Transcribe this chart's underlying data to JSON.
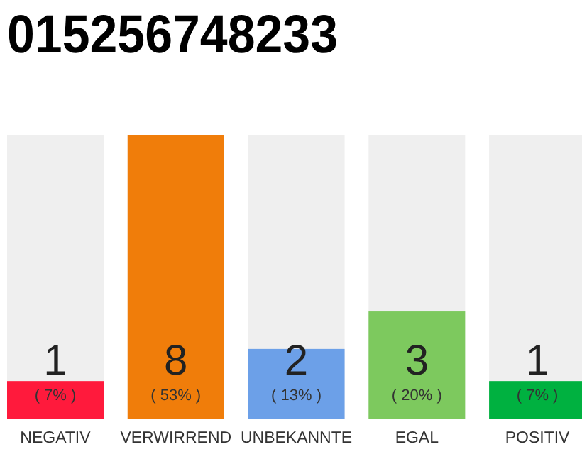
{
  "chart_data": {
    "type": "bar",
    "title": "015256748233",
    "categories": [
      "NEGATIV",
      "VERWIRREND",
      "UNBEKANNTE",
      "EGAL",
      "POSITIV"
    ],
    "values": [
      7,
      53,
      13,
      20,
      7
    ],
    "colors": [
      "#ff1a3c",
      "#f07d0a",
      "#6ca0e8",
      "#7dc95e",
      "#00b140"
    ],
    "value_labels": [
      "1\n( 7% )",
      "8\n( 53% )",
      "2\n( 13% )",
      "3\n( 20% )",
      "1\n( 7% )"
    ],
    "tick_labels": "x"
  }
}
